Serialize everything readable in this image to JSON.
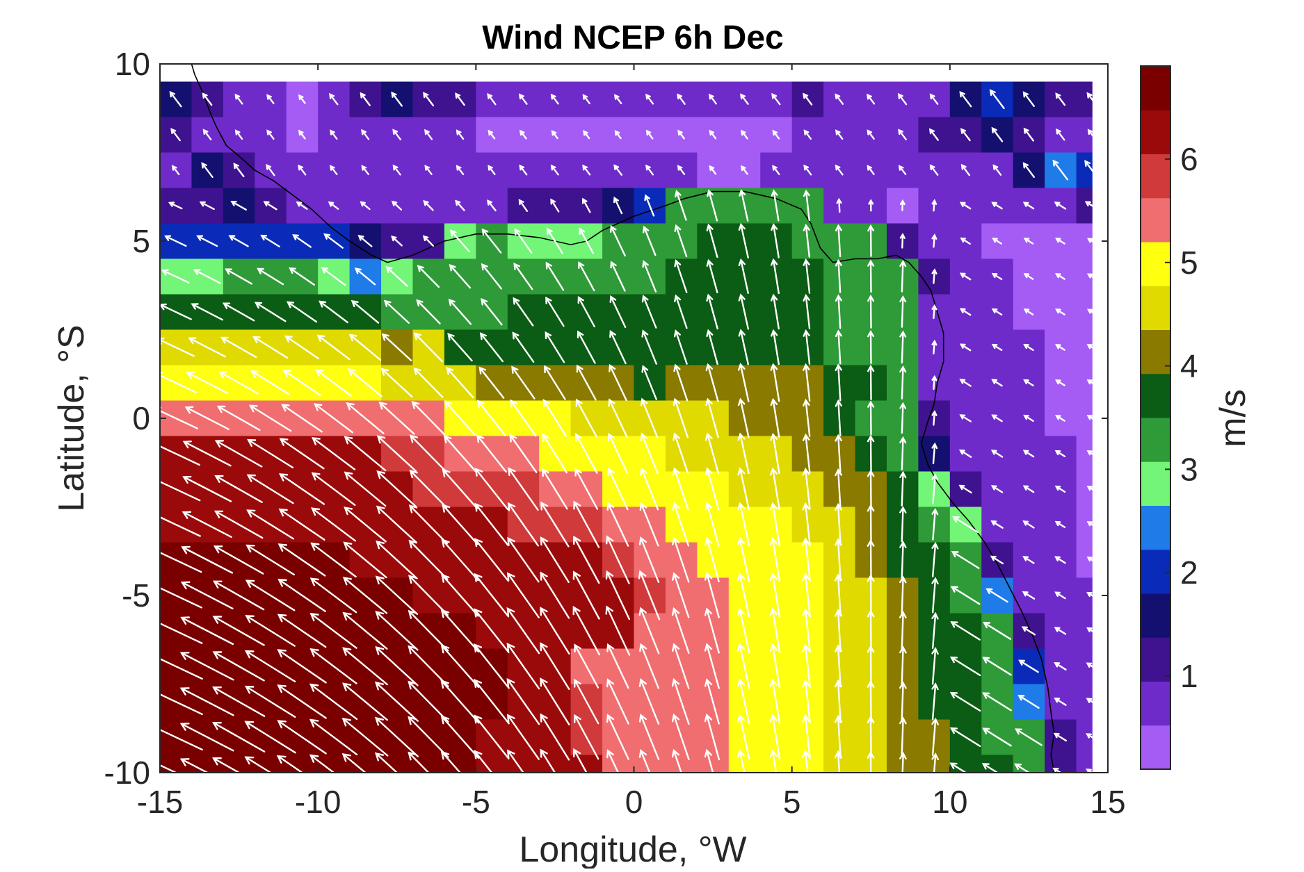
{
  "chart_data": {
    "type": "heatmap",
    "title": "Wind NCEP 6h Dec",
    "xlabel": "Longitude, °W",
    "ylabel": "Latitude, °S",
    "xlim": [
      -15,
      15
    ],
    "ylim": [
      -10,
      10
    ],
    "x_ticks": [
      "-15",
      "-10",
      "-5",
      "0",
      "5",
      "10",
      "15"
    ],
    "y_ticks": [
      "10",
      "5",
      "0",
      "-5",
      "-10"
    ],
    "colorbar": {
      "label": "m/s",
      "range": [
        0.1,
        6.9
      ],
      "ticks": [
        "1",
        "2",
        "3",
        "4",
        "5",
        "6"
      ],
      "colors": [
        "#A45CF5",
        "#6E2BC9",
        "#3F1290",
        "#141070",
        "#0A2BB8",
        "#1E7BE8",
        "#73F577",
        "#2F9A38",
        "#0B5C14",
        "#8A7A00",
        "#E0DA00",
        "#FFFF10",
        "#F06E70",
        "#D03A3A",
        "#9B0A0A",
        "#7A0000"
      ]
    },
    "grid": false,
    "grid_spacing_deg": 1,
    "cell_extent": {
      "lon": [
        -15,
        14.5
      ],
      "lat": [
        -10,
        9.5
      ]
    },
    "speed_rows_north_to_south": [
      [
        1.6,
        1.1,
        0.7,
        0.6,
        0.5,
        0.9,
        1.2,
        1.4,
        1.3,
        1.1,
        0.9,
        0.8,
        0.7,
        0.6,
        0.6,
        0.7,
        0.8,
        0.7,
        0.8,
        0.9,
        1.0,
        0.8,
        0.7,
        0.9,
        0.8,
        1.6,
        2.2,
        1.5,
        1.1,
        1.2
      ],
      [
        1.1,
        0.8,
        0.6,
        0.6,
        0.5,
        0.6,
        0.7,
        0.8,
        0.7,
        0.6,
        0.5,
        0.5,
        0.4,
        0.4,
        0.4,
        0.5,
        0.5,
        0.5,
        0.5,
        0.5,
        0.6,
        0.6,
        0.6,
        0.8,
        1.0,
        1.1,
        1.4,
        1.2,
        0.9,
        0.8
      ],
      [
        0.6,
        1.5,
        1.3,
        0.9,
        0.7,
        0.6,
        0.6,
        0.7,
        0.6,
        0.6,
        0.6,
        0.7,
        0.7,
        0.7,
        0.8,
        0.7,
        0.6,
        0.5,
        0.5,
        0.6,
        0.7,
        0.7,
        0.6,
        0.6,
        0.8,
        0.9,
        0.8,
        1.5,
        2.3,
        2.2
      ],
      [
        1.0,
        1.2,
        1.4,
        1.1,
        0.8,
        0.7,
        0.7,
        0.8,
        0.9,
        0.9,
        0.9,
        1.0,
        1.1,
        1.2,
        1.5,
        2.1,
        3.2,
        3.3,
        3.3,
        3.2,
        3.1,
        0.9,
        0.6,
        0.5,
        0.6,
        0.7,
        0.7,
        0.7,
        0.8,
        1.1
      ],
      [
        2.2,
        2.1,
        2.0,
        2.0,
        2.0,
        2.2,
        1.4,
        1.0,
        1.0,
        2.9,
        3.1,
        3.0,
        3.0,
        2.9,
        3.5,
        3.2,
        3.5,
        3.6,
        3.7,
        3.6,
        3.4,
        3.3,
        3.2,
        1.0,
        0.8,
        0.6,
        0.5,
        0.5,
        0.5,
        0.4
      ],
      [
        3.0,
        3.0,
        3.1,
        3.1,
        3.1,
        3.0,
        2.5,
        2.9,
        3.1,
        3.2,
        3.3,
        3.3,
        3.4,
        3.4,
        3.4,
        3.5,
        3.6,
        3.6,
        3.7,
        3.7,
        3.6,
        3.4,
        3.3,
        3.2,
        1.0,
        0.7,
        0.6,
        0.5,
        0.5,
        0.4
      ],
      [
        3.7,
        3.7,
        3.8,
        3.8,
        3.8,
        3.8,
        3.7,
        3.5,
        3.5,
        3.5,
        3.5,
        3.6,
        3.6,
        3.6,
        3.7,
        3.7,
        3.7,
        3.8,
        3.8,
        3.7,
        3.6,
        3.5,
        3.4,
        3.2,
        0.9,
        0.7,
        0.6,
        0.5,
        0.5,
        0.4
      ],
      [
        4.5,
        4.5,
        4.4,
        4.4,
        4.4,
        4.4,
        4.4,
        4.3,
        4.4,
        3.9,
        3.9,
        3.9,
        3.8,
        3.9,
        3.9,
        3.9,
        3.8,
        3.8,
        3.8,
        3.7,
        3.6,
        3.5,
        3.4,
        3.3,
        0.9,
        0.7,
        0.6,
        0.6,
        0.5,
        0.5
      ],
      [
        5.1,
        5.1,
        5.0,
        5.0,
        5.0,
        4.9,
        4.8,
        4.6,
        4.5,
        4.4,
        4.3,
        4.3,
        4.3,
        4.3,
        4.3,
        3.9,
        4.1,
        4.2,
        4.2,
        4.1,
        4.0,
        3.9,
        3.6,
        3.4,
        0.9,
        0.8,
        0.7,
        0.6,
        0.5,
        0.5
      ],
      [
        5.5,
        5.5,
        5.5,
        5.5,
        5.5,
        5.4,
        5.4,
        5.3,
        5.2,
        5.1,
        5.0,
        4.9,
        4.8,
        4.7,
        4.6,
        4.6,
        4.5,
        4.4,
        4.3,
        4.2,
        4.0,
        3.8,
        3.5,
        3.1,
        1.0,
        0.8,
        0.7,
        0.6,
        0.5,
        0.5
      ],
      [
        6.1,
        6.1,
        6.1,
        6.1,
        6.1,
        6.1,
        6.1,
        6.0,
        5.9,
        5.4,
        5.3,
        5.2,
        5.1,
        5.0,
        4.9,
        4.8,
        4.7,
        4.6,
        4.5,
        4.4,
        4.2,
        4.0,
        3.8,
        3.4,
        1.8,
        0.9,
        0.8,
        0.7,
        0.6,
        0.5
      ],
      [
        6.2,
        6.2,
        6.2,
        6.2,
        6.2,
        6.2,
        6.1,
        6.1,
        6.0,
        6.0,
        6.0,
        5.9,
        5.3,
        5.2,
        5.1,
        5.0,
        4.9,
        4.8,
        4.7,
        4.6,
        4.5,
        4.3,
        4.0,
        3.6,
        3.0,
        1.0,
        0.8,
        0.7,
        0.6,
        0.5
      ],
      [
        6.3,
        6.3,
        6.3,
        6.3,
        6.3,
        6.3,
        6.2,
        6.2,
        6.2,
        6.1,
        6.1,
        6.0,
        6.0,
        6.0,
        5.4,
        5.2,
        5.1,
        5.0,
        4.9,
        4.8,
        4.7,
        4.5,
        4.2,
        3.7,
        3.2,
        3.0,
        0.9,
        0.8,
        0.6,
        0.5
      ],
      [
        6.6,
        6.6,
        6.5,
        6.5,
        6.5,
        6.5,
        6.4,
        6.4,
        6.3,
        6.3,
        6.2,
        6.2,
        6.1,
        6.1,
        6.0,
        5.5,
        5.3,
        5.1,
        5.0,
        4.9,
        4.8,
        4.6,
        4.3,
        3.9,
        3.6,
        3.3,
        1.0,
        0.8,
        0.7,
        0.5
      ],
      [
        6.7,
        6.7,
        6.7,
        6.6,
        6.6,
        6.6,
        6.5,
        6.5,
        6.4,
        6.4,
        6.3,
        6.3,
        6.2,
        6.2,
        6.1,
        6.0,
        5.3,
        5.2,
        5.0,
        4.9,
        4.8,
        4.6,
        4.4,
        4.0,
        3.7,
        3.5,
        2.4,
        0.9,
        0.7,
        0.6
      ],
      [
        6.8,
        6.8,
        6.8,
        6.7,
        6.7,
        6.7,
        6.6,
        6.6,
        6.5,
        6.5,
        6.4,
        6.4,
        6.3,
        6.3,
        6.2,
        5.6,
        5.4,
        5.2,
        5.1,
        5.0,
        4.8,
        4.6,
        4.4,
        4.1,
        3.8,
        3.6,
        3.3,
        1.1,
        0.8,
        0.6
      ],
      [
        6.9,
        6.9,
        6.8,
        6.8,
        6.8,
        6.7,
        6.7,
        6.6,
        6.6,
        6.5,
        6.5,
        6.4,
        6.3,
        5.6,
        5.5,
        5.4,
        5.3,
        5.2,
        5.1,
        4.9,
        4.8,
        4.6,
        4.4,
        4.2,
        3.9,
        3.7,
        3.5,
        2.1,
        0.9,
        0.7
      ],
      [
        6.9,
        6.9,
        6.9,
        6.8,
        6.8,
        6.8,
        6.7,
        6.7,
        6.6,
        6.6,
        6.5,
        6.4,
        6.3,
        5.7,
        5.6,
        5.5,
        5.4,
        5.2,
        5.1,
        5.0,
        4.8,
        4.7,
        4.5,
        4.2,
        3.9,
        3.7,
        3.5,
        2.3,
        0.9,
        0.7
      ],
      [
        6.9,
        6.9,
        6.9,
        6.9,
        6.8,
        6.8,
        6.8,
        6.7,
        6.6,
        6.5,
        6.4,
        6.3,
        6.2,
        5.7,
        5.6,
        5.5,
        5.4,
        5.3,
        5.1,
        5.0,
        4.9,
        4.7,
        4.5,
        4.2,
        4.0,
        3.7,
        3.5,
        3.2,
        1.0,
        0.8
      ],
      [
        6.9,
        6.9,
        6.9,
        6.9,
        6.9,
        6.8,
        6.8,
        6.7,
        6.6,
        6.5,
        6.4,
        6.3,
        6.2,
        6.1,
        5.6,
        5.5,
        5.4,
        5.3,
        5.1,
        5.0,
        4.9,
        4.7,
        4.5,
        4.3,
        4.1,
        3.8,
        3.6,
        3.4,
        1.3,
        0.8
      ]
    ],
    "direction_note": "",
    "coastline": [
      [
        -14,
        10
      ],
      [
        -13.9,
        9.7
      ],
      [
        -13.6,
        9.1
      ],
      [
        -13.4,
        8.6
      ],
      [
        -13.2,
        8.2
      ],
      [
        -12.9,
        7.7
      ],
      [
        -12.5,
        7.4
      ],
      [
        -12.0,
        7.0
      ],
      [
        -11.4,
        6.7
      ],
      [
        -10.8,
        6.3
      ],
      [
        -10.2,
        5.9
      ],
      [
        -9.6,
        5.4
      ],
      [
        -9.0,
        5.0
      ],
      [
        -8.3,
        4.6
      ],
      [
        -7.8,
        4.4
      ],
      [
        -7.0,
        4.6
      ],
      [
        -6.0,
        5.0
      ],
      [
        -5.0,
        5.2
      ],
      [
        -4.0,
        5.2
      ],
      [
        -3.0,
        5.1
      ],
      [
        -2.0,
        4.9
      ],
      [
        -1.5,
        5.0
      ],
      [
        -1.0,
        5.3
      ],
      [
        0.0,
        5.7
      ],
      [
        1.0,
        6.0
      ],
      [
        1.6,
        6.2
      ],
      [
        2.5,
        6.4
      ],
      [
        3.5,
        6.4
      ],
      [
        4.5,
        6.2
      ],
      [
        5.3,
        5.9
      ],
      [
        5.6,
        5.5
      ],
      [
        5.9,
        4.8
      ],
      [
        6.3,
        4.4
      ],
      [
        7.0,
        4.5
      ],
      [
        7.7,
        4.5
      ],
      [
        8.3,
        4.6
      ],
      [
        8.7,
        4.4
      ],
      [
        9.1,
        4.0
      ],
      [
        9.4,
        3.6
      ],
      [
        9.6,
        3.0
      ],
      [
        9.8,
        2.4
      ],
      [
        9.8,
        1.6
      ],
      [
        9.6,
        1.0
      ],
      [
        9.5,
        0.4
      ],
      [
        9.3,
        -0.1
      ],
      [
        9.1,
        -0.7
      ],
      [
        9.3,
        -1.3
      ],
      [
        9.6,
        -1.8
      ],
      [
        10.1,
        -2.4
      ],
      [
        10.6,
        -2.9
      ],
      [
        11.1,
        -3.5
      ],
      [
        11.5,
        -4.1
      ],
      [
        11.9,
        -4.8
      ],
      [
        12.3,
        -5.5
      ],
      [
        12.6,
        -6.1
      ],
      [
        12.9,
        -6.8
      ],
      [
        13.1,
        -7.6
      ],
      [
        13.2,
        -8.3
      ],
      [
        13.3,
        -8.9
      ],
      [
        13.2,
        -9.5
      ],
      [
        13.3,
        -10.0
      ]
    ]
  }
}
